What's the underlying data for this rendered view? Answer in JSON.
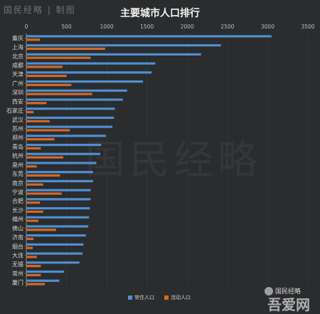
{
  "watermark_top": "国民经略 | 制图",
  "watermark_bottom": "国民经略",
  "watermark_site": "吾爱网",
  "watermark_center": "国民经略",
  "colors": {
    "resident": "#4e8fd1",
    "floating": "#d2692a",
    "axis": "#9a9a9a",
    "grid": "#3a3b3e"
  },
  "chart_data": {
    "type": "bar",
    "orientation": "horizontal",
    "title": "主要城市人口排行",
    "xlim": [
      0,
      3500
    ],
    "xticks": [
      0,
      500,
      1000,
      1500,
      2000,
      2500,
      3000,
      3500
    ],
    "legend_position": "bottom",
    "categories": [
      "重庆",
      "上海",
      "北京",
      "成都",
      "天津",
      "广州",
      "深圳",
      "西安",
      "石家庄",
      "武汉",
      "苏州",
      "郑州",
      "青岛",
      "杭州",
      "泉州",
      "东莞",
      "南京",
      "宁波",
      "合肥",
      "长沙",
      "福州",
      "佛山",
      "济南",
      "烟台",
      "大连",
      "无锡",
      "常州",
      "厦门"
    ],
    "series": [
      {
        "name": "常住人口",
        "values": [
          3048,
          2418,
          2171,
          1604,
          1557,
          1450,
          1253,
          1200,
          1100,
          1090,
          1070,
          990,
          930,
          920,
          870,
          830,
          830,
          800,
          800,
          790,
          780,
          770,
          740,
          710,
          700,
          660,
          470,
          410
        ]
      },
      {
        "name": "流动人口",
        "values": [
          170,
          980,
          800,
          450,
          500,
          560,
          820,
          250,
          90,
          290,
          540,
          350,
          180,
          460,
          130,
          420,
          210,
          440,
          170,
          210,
          150,
          370,
          90,
          80,
          130,
          180,
          180,
          230
        ]
      }
    ]
  }
}
